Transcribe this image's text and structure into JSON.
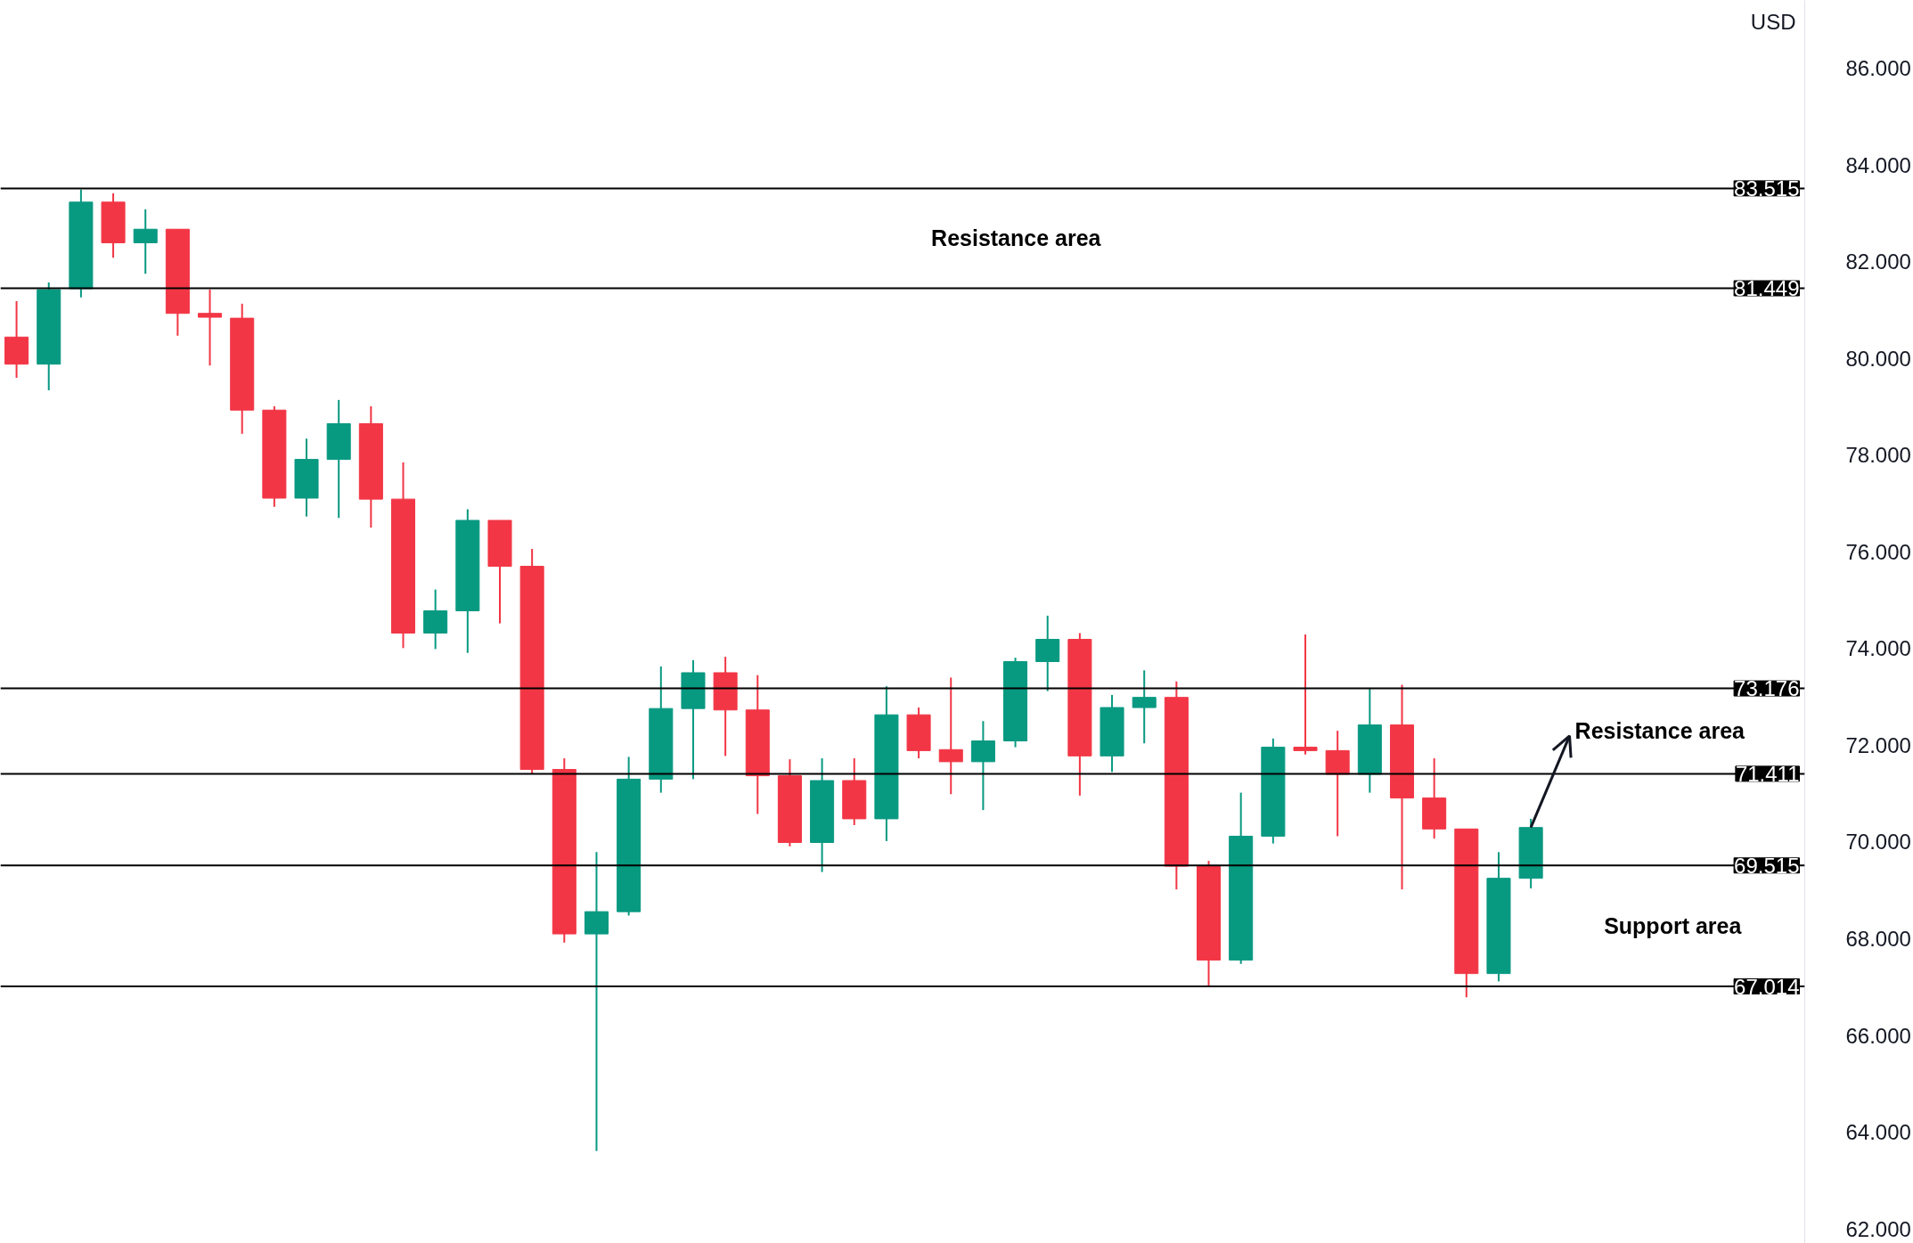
{
  "chart_data": {
    "type": "candlestick",
    "ylabel": "USD",
    "categories": [
      null,
      null,
      null,
      null,
      null,
      null,
      null,
      null,
      null,
      null,
      null,
      null,
      null,
      null,
      null,
      null,
      null,
      null,
      null,
      null,
      null,
      null,
      null,
      null,
      null,
      null,
      null,
      null,
      null,
      null,
      null,
      null,
      null,
      null,
      null,
      null,
      null,
      null,
      null,
      null,
      null,
      null,
      null,
      null,
      null,
      null,
      null,
      null,
      null,
      null,
      null,
      null,
      null,
      null,
      null,
      null
    ],
    "ohlc": [
      [
        80.44,
        81.18,
        79.6,
        79.88
      ],
      [
        79.88,
        81.57,
        79.34,
        81.42
      ],
      [
        81.44,
        83.49,
        81.26,
        83.23
      ],
      [
        83.23,
        83.41,
        82.08,
        82.39
      ],
      [
        82.39,
        83.08,
        81.75,
        82.67
      ],
      [
        82.67,
        82.67,
        80.47,
        80.93
      ],
      [
        80.93,
        81.42,
        79.85,
        80.85
      ],
      [
        80.83,
        81.13,
        78.44,
        78.93
      ],
      [
        78.93,
        79.01,
        76.93,
        77.11
      ],
      [
        77.11,
        78.34,
        76.73,
        77.91
      ],
      [
        77.91,
        79.14,
        76.7,
        78.65
      ],
      [
        78.65,
        79.01,
        76.5,
        77.09
      ],
      [
        77.09,
        77.85,
        74.01,
        74.32
      ],
      [
        74.32,
        75.22,
        73.99,
        74.78
      ],
      [
        74.78,
        76.88,
        73.91,
        76.65
      ],
      [
        76.65,
        76.65,
        74.52,
        75.7
      ],
      [
        75.7,
        76.06,
        71.4,
        71.5
      ],
      [
        71.5,
        71.73,
        67.92,
        68.1
      ],
      [
        68.1,
        69.79,
        63.61,
        68.56
      ],
      [
        68.56,
        71.76,
        68.48,
        71.3
      ],
      [
        71.3,
        73.63,
        71.02,
        72.76
      ],
      [
        72.76,
        73.76,
        71.3,
        73.5
      ],
      [
        73.5,
        73.83,
        71.78,
        72.73
      ],
      [
        72.73,
        73.45,
        70.58,
        71.37
      ],
      [
        71.37,
        71.71,
        69.91,
        69.99
      ],
      [
        69.99,
        71.73,
        69.38,
        71.27
      ],
      [
        71.27,
        71.73,
        70.35,
        70.48
      ],
      [
        70.48,
        73.22,
        70.02,
        72.63
      ],
      [
        72.63,
        72.78,
        71.73,
        71.89
      ],
      [
        71.91,
        73.4,
        70.99,
        71.66
      ],
      [
        71.66,
        72.5,
        70.66,
        72.09
      ],
      [
        72.09,
        73.81,
        71.96,
        73.73
      ],
      [
        73.73,
        74.68,
        73.12,
        74.19
      ],
      [
        74.19,
        74.32,
        70.96,
        71.78
      ],
      [
        71.78,
        73.04,
        71.45,
        72.78
      ],
      [
        72.78,
        73.55,
        72.04,
        72.99
      ],
      [
        72.99,
        73.32,
        69.02,
        69.5
      ],
      [
        69.5,
        69.61,
        67.02,
        67.56
      ],
      [
        67.56,
        71.02,
        67.48,
        70.12
      ],
      [
        70.12,
        72.14,
        69.97,
        71.96
      ],
      [
        71.96,
        74.29,
        71.81,
        71.89
      ],
      [
        71.89,
        72.3,
        70.12,
        71.4
      ],
      [
        71.4,
        73.17,
        71.02,
        72.42
      ],
      [
        72.42,
        73.25,
        69.02,
        70.91
      ],
      [
        70.91,
        71.73,
        70.07,
        70.27
      ],
      [
        70.27,
        70.27,
        66.79,
        67.28
      ],
      [
        67.28,
        69.79,
        67.12,
        69.25
      ],
      [
        69.25,
        70.48,
        69.04,
        70.3
      ],
      null,
      null,
      null,
      null,
      null,
      null,
      null,
      null
    ],
    "colors": [
      "#f23645",
      "#089981",
      "#089981",
      "#f23645",
      "#089981",
      "#f23645",
      "#f23645",
      "#f23645",
      "#f23645",
      "#089981",
      "#089981",
      "#f23645",
      "#f23645",
      "#089981",
      "#089981",
      "#f23645",
      "#f23645",
      "#f23645",
      "#089981",
      "#089981",
      "#089981",
      "#089981",
      "#f23645",
      "#f23645",
      "#f23645",
      "#089981",
      "#f23645",
      "#089981",
      "#f23645",
      "#f23645",
      "#089981",
      "#089981",
      "#089981",
      "#f23645",
      "#089981",
      "#089981",
      "#f23645",
      "#f23645",
      "#089981",
      "#089981",
      "#f23645",
      "#f23645",
      "#089981",
      "#f23645",
      "#f23645",
      "#f23645",
      "#089981",
      "#089981",
      null,
      null,
      null,
      null,
      null,
      null,
      null,
      null
    ],
    "ylim": [
      61.7,
      87.4
    ],
    "yticks": [
      {
        "value": 62,
        "label": "62.000"
      },
      {
        "value": 64,
        "label": "64.000"
      },
      {
        "value": 66,
        "label": "66.000"
      },
      {
        "value": 68,
        "label": "68.000"
      },
      {
        "value": 70,
        "label": "70.000"
      },
      {
        "value": 72,
        "label": "72.000"
      },
      {
        "value": 74,
        "label": "74.000"
      },
      {
        "value": 76,
        "label": "76.000"
      },
      {
        "value": 78,
        "label": "78.000"
      },
      {
        "value": 80,
        "label": "80.000"
      },
      {
        "value": 82,
        "label": "82.000"
      },
      {
        "value": 84,
        "label": "84.000"
      },
      {
        "value": 86,
        "label": "86.000"
      }
    ],
    "ref_lines": [
      {
        "axis": "y",
        "value": 83.515,
        "label": "83.515",
        "color": "#000000"
      },
      {
        "axis": "y",
        "value": 81.449,
        "label": "81.449",
        "color": "#000000"
      },
      {
        "axis": "y",
        "value": 73.176,
        "label": "73.176",
        "color": "#000000"
      },
      {
        "axis": "y",
        "value": 71.411,
        "label": "71.411",
        "color": "#000000"
      },
      {
        "axis": "y",
        "value": 69.515,
        "label": "69.515",
        "color": "#000000"
      },
      {
        "axis": "y",
        "value": 67.014,
        "label": "67.014",
        "color": "#000000"
      }
    ],
    "annotations": [
      "Resistance area",
      "Resistance area",
      "Support area"
    ],
    "grid": false
  }
}
